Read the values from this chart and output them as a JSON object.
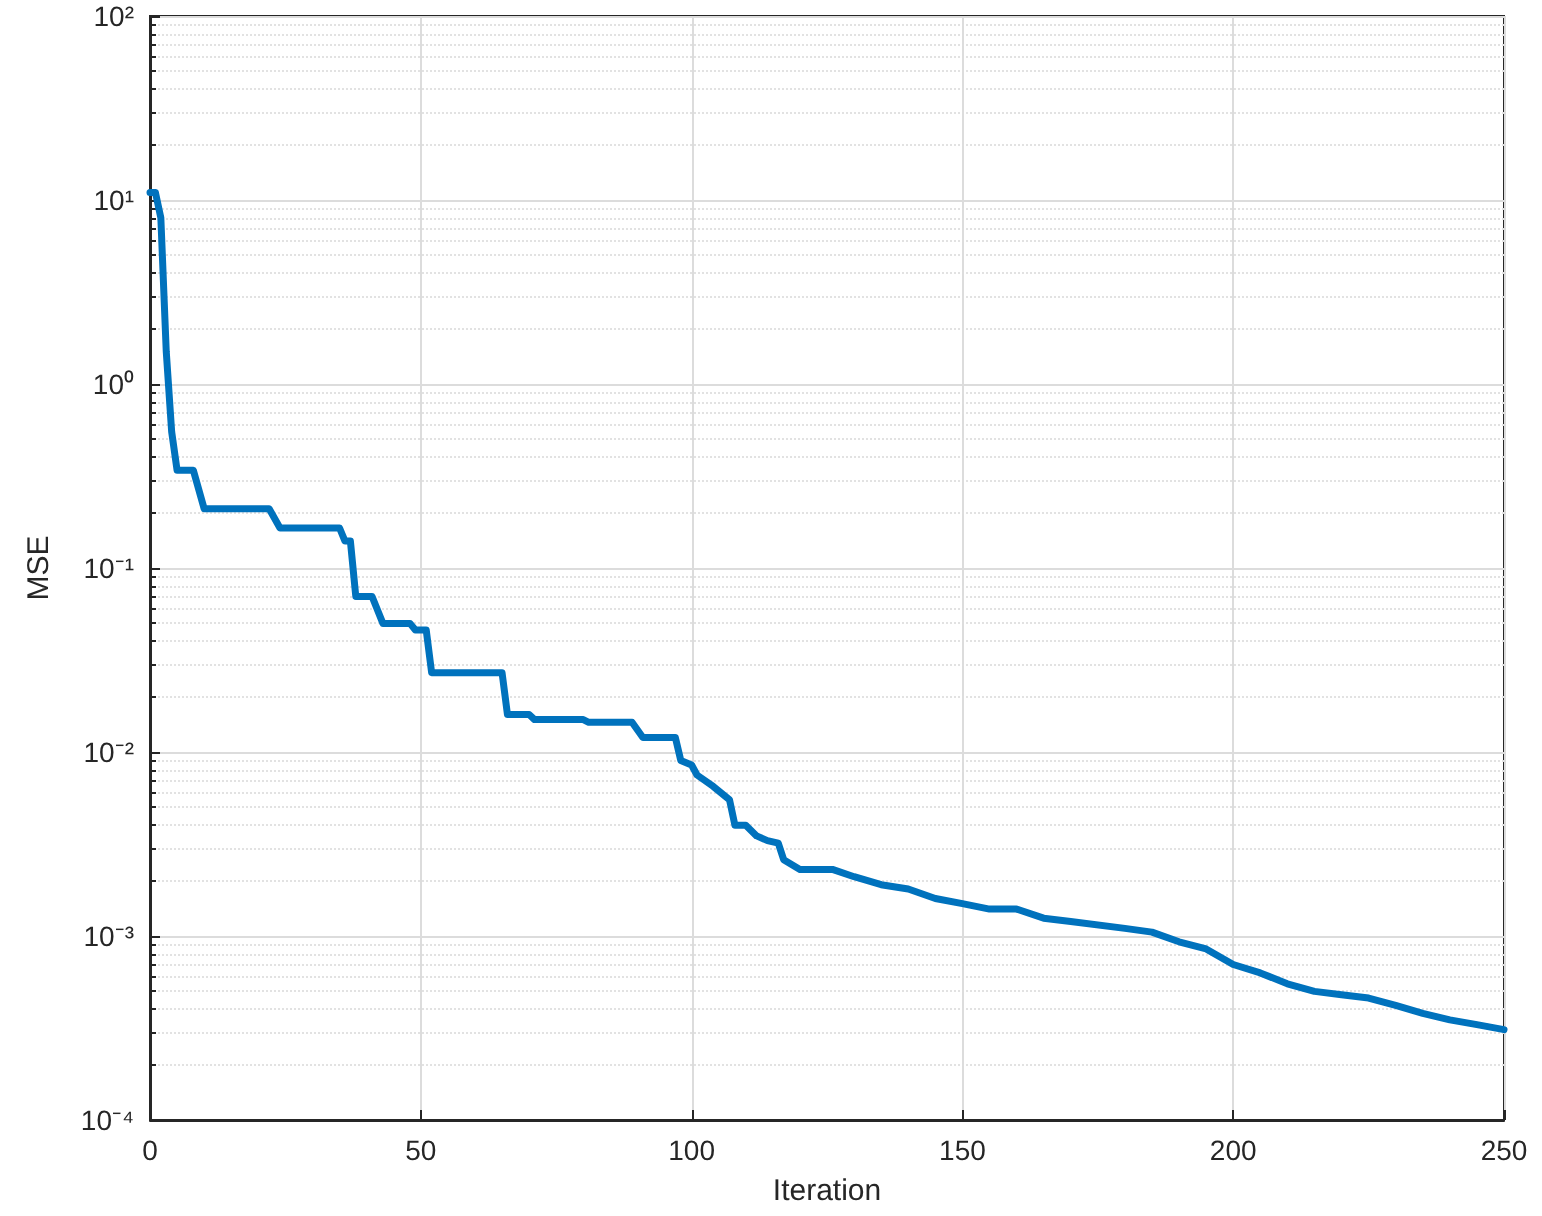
{
  "chart_data": {
    "type": "line",
    "xlabel": "Iteration",
    "ylabel": "MSE",
    "log": "y",
    "grid": true,
    "marker": "none",
    "line_style": "solid",
    "xlim": [
      0,
      250
    ],
    "xticks": [
      0,
      50,
      100,
      150,
      200,
      250
    ],
    "ylim": [
      0.0001,
      100
    ],
    "yticks": [
      {
        "value": 0.0001,
        "label": "10⁻⁴"
      },
      {
        "value": 0.001,
        "label": "10⁻³"
      },
      {
        "value": 0.01,
        "label": "10⁻²"
      },
      {
        "value": 0.1,
        "label": "10⁻¹"
      },
      {
        "value": 1,
        "label": "10⁰"
      },
      {
        "value": 10,
        "label": "10¹"
      },
      {
        "value": 100,
        "label": "10²"
      }
    ],
    "series": [
      {
        "color": "#0072bd",
        "x": [
          0,
          1,
          2,
          3,
          4,
          5,
          8,
          10,
          22,
          24,
          35,
          36,
          37,
          38,
          41,
          43,
          48,
          49,
          51,
          52,
          65,
          66,
          70,
          71,
          80,
          81,
          89,
          91,
          97,
          98,
          100,
          101,
          104,
          107,
          108,
          110,
          112,
          114,
          116,
          117,
          120,
          126,
          130,
          135,
          140,
          145,
          150,
          155,
          160,
          165,
          170,
          180,
          185,
          190,
          195,
          200,
          205,
          210,
          215,
          220,
          225,
          230,
          235,
          240,
          245,
          250
        ],
        "values": [
          11,
          11,
          8,
          1.5,
          0.55,
          0.34,
          0.34,
          0.21,
          0.21,
          0.165,
          0.165,
          0.14,
          0.14,
          0.07,
          0.07,
          0.05,
          0.05,
          0.046,
          0.046,
          0.027,
          0.027,
          0.016,
          0.016,
          0.015,
          0.015,
          0.0145,
          0.0145,
          0.012,
          0.012,
          0.009,
          0.0085,
          0.0075,
          0.0065,
          0.0055,
          0.004,
          0.004,
          0.0035,
          0.0033,
          0.0032,
          0.0026,
          0.0023,
          0.0023,
          0.0021,
          0.0019,
          0.0018,
          0.0016,
          0.0015,
          0.0014,
          0.0014,
          0.00125,
          0.0012,
          0.0011,
          0.00105,
          0.00093,
          0.00085,
          0.0007,
          0.00063,
          0.00055,
          0.0005,
          0.00048,
          0.00046,
          0.00042,
          0.00038,
          0.00035,
          0.00033,
          0.00031
        ]
      }
    ]
  }
}
